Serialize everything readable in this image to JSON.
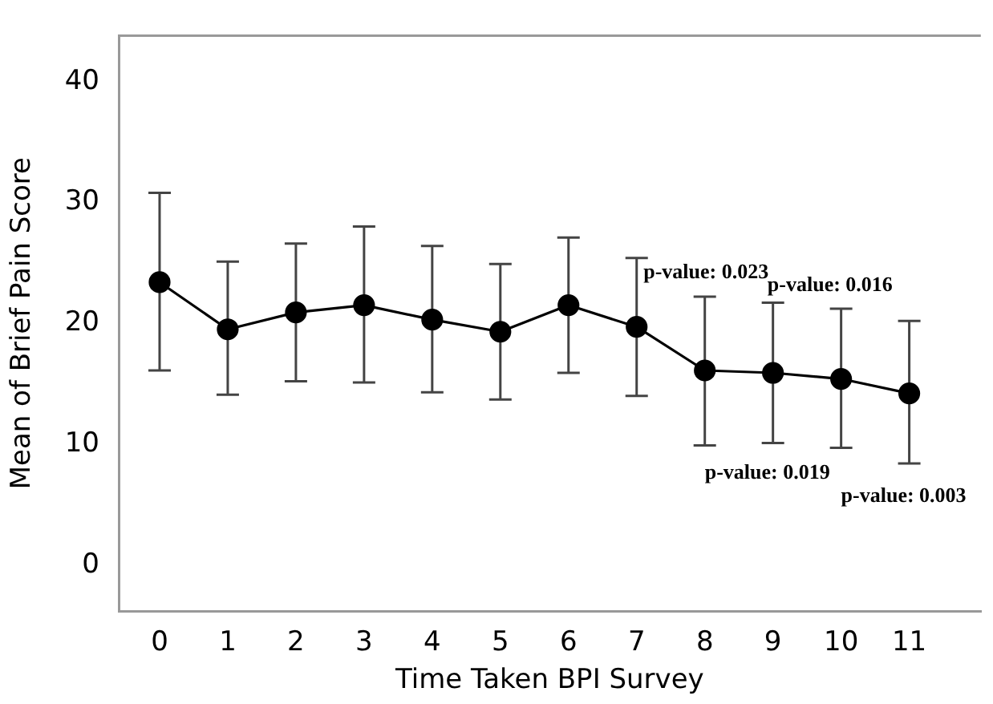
{
  "chart_data": {
    "type": "line",
    "xlabel": "Time Taken BPI Survey",
    "ylabel": "Mean of Brief Pain Score",
    "x": [
      0,
      1,
      2,
      3,
      4,
      5,
      6,
      7,
      8,
      9,
      10,
      11
    ],
    "series": [
      {
        "color": "#000000",
        "values": [
          23.4,
          19.5,
          20.9,
          21.5,
          20.3,
          19.3,
          21.5,
          19.7,
          16.1,
          15.9,
          15.4,
          14.2
        ],
        "errors": [
          [
            16.1,
            30.8
          ],
          [
            14.1,
            25.1
          ],
          [
            15.2,
            26.6
          ],
          [
            15.1,
            28.0
          ],
          [
            14.3,
            26.4
          ],
          [
            13.7,
            24.9
          ],
          [
            15.9,
            27.1
          ],
          [
            14.0,
            25.4
          ],
          [
            9.9,
            22.2
          ],
          [
            10.1,
            21.7
          ],
          [
            9.7,
            21.2
          ],
          [
            8.4,
            20.2
          ]
        ]
      }
    ],
    "xlim": [
      -0.6,
      12.05
    ],
    "xticks": [
      0,
      1,
      2,
      3,
      4,
      5,
      6,
      7,
      8,
      9,
      10,
      11
    ],
    "ylim": [
      -3.8,
      43.8
    ],
    "yticks": [
      0,
      10,
      20,
      30,
      40
    ],
    "marker": "circle",
    "line_style": "solid",
    "grid": false,
    "legend": false,
    "annotations": [
      "p-value: 0.023",
      "p-value: 0.016",
      "p-value: 0.019",
      "p-value: 0.003"
    ]
  }
}
